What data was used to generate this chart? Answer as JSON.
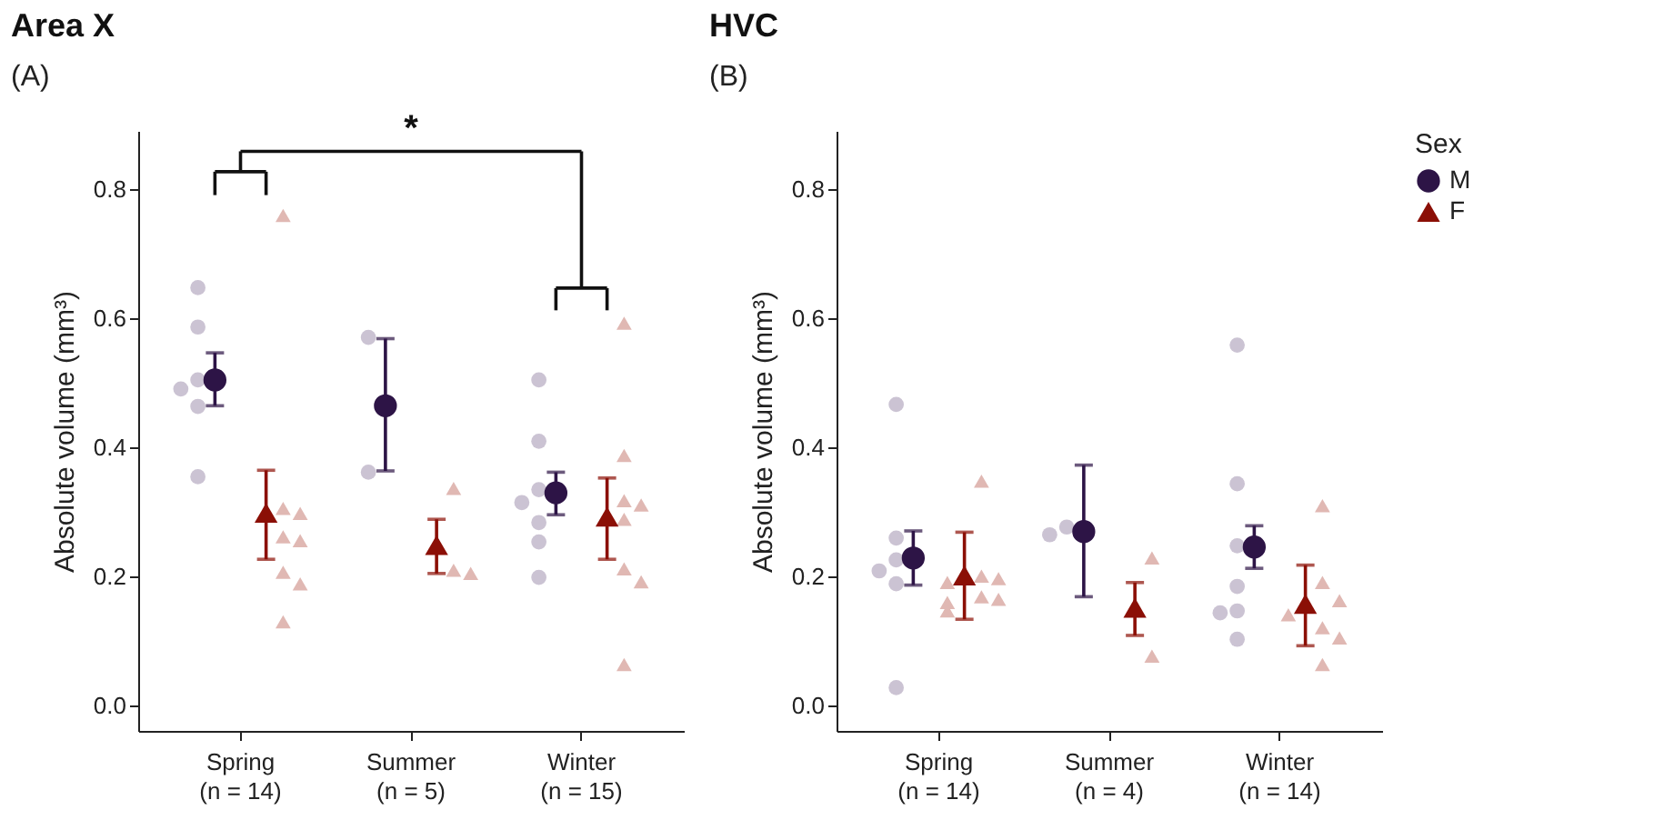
{
  "chart_data": [
    {
      "type": "scatter",
      "title": "Area X",
      "ylabel": "Absolute volume (mm³)",
      "categories": [
        "Spring (n = 14)",
        "Summer (n = 5)",
        "Winter (n = 15)"
      ],
      "ylim": [
        -0.04,
        0.89
      ],
      "yticks": [
        {
          "value": 0,
          "label": "0.0"
        },
        0.2,
        0.4,
        0.6,
        0.8
      ],
      "annotations": [
        "(A)",
        "*"
      ],
      "series": [
        {
          "color": "#cbc3d3",
          "marker": "circle",
          "x": [
            "Spring (n = 14)",
            "Spring (n = 14)",
            "Spring (n = 14)",
            "Spring (n = 14)",
            "Spring (n = 14)",
            "Spring (n = 14)",
            "Summer (n = 5)",
            "Summer (n = 5)",
            "Winter (n = 15)",
            "Winter (n = 15)",
            "Winter (n = 15)",
            "Winter (n = 15)",
            "Winter (n = 15)",
            "Winter (n = 15)",
            "Winter (n = 15)"
          ],
          "values": [
            0.647,
            0.586,
            0.504,
            0.49,
            0.463,
            0.354,
            0.57,
            0.361,
            0.504,
            0.409,
            0.334,
            0.314,
            0.283,
            0.253,
            0.198
          ]
        },
        {
          "color": "#e0b8b3",
          "marker": "triangle",
          "x": [
            "Spring (n = 14)",
            "Spring (n = 14)",
            "Spring (n = 14)",
            "Spring (n = 14)",
            "Spring (n = 14)",
            "Spring (n = 14)",
            "Spring (n = 14)",
            "Spring (n = 14)",
            "Summer (n = 5)",
            "Summer (n = 5)",
            "Summer (n = 5)",
            "Winter (n = 15)",
            "Winter (n = 15)",
            "Winter (n = 15)",
            "Winter (n = 15)",
            "Winter (n = 15)",
            "Winter (n = 15)",
            "Winter (n = 15)",
            "Winter (n = 15)"
          ],
          "values": [
            0.759,
            0.305,
            0.297,
            0.261,
            0.255,
            0.206,
            0.188,
            0.129,
            0.336,
            0.209,
            0.204,
            0.592,
            0.387,
            0.317,
            0.31,
            0.288,
            0.211,
            0.191,
            0.063
          ]
        },
        {
          "color": "#2d1446",
          "marker": "circle",
          "values": [
            0.504,
            0.464,
            0.329
          ],
          "errors": [
            [
              0.464,
              0.546
            ],
            [
              0.363,
              0.568
            ],
            [
              0.295,
              0.361
            ]
          ]
        },
        {
          "color": "#8b0f06",
          "marker": "triangle",
          "values": [
            0.298,
            0.248,
            0.292
          ],
          "errors": [
            [
              0.226,
              0.364
            ],
            [
              0.204,
              0.288
            ],
            [
              0.226,
              0.352
            ]
          ]
        }
      ]
    },
    {
      "type": "scatter",
      "title": "HVC",
      "ylabel": "Absolute volume (mm³)",
      "categories": [
        "Spring (n = 14)",
        "Summer (n = 4)",
        "Winter (n = 14)"
      ],
      "ylim": [
        -0.04,
        0.89
      ],
      "yticks": [
        {
          "value": 0,
          "label": "0.0"
        },
        0.2,
        0.4,
        0.6,
        0.8
      ],
      "legend": "right",
      "legend_title": "Sex",
      "annotations": [
        "(B)"
      ],
      "series": [
        {
          "color": "#cbc3d3",
          "marker": "circle",
          "x": [
            "Spring (n = 14)",
            "Spring (n = 14)",
            "Spring (n = 14)",
            "Spring (n = 14)",
            "Spring (n = 14)",
            "Spring (n = 14)",
            "Summer (n = 4)",
            "Summer (n = 4)",
            "Winter (n = 14)",
            "Winter (n = 14)",
            "Winter (n = 14)",
            "Winter (n = 14)",
            "Winter (n = 14)",
            "Winter (n = 14)",
            "Winter (n = 14)"
          ],
          "values": [
            0.466,
            0.259,
            0.225,
            0.208,
            0.188,
            0.027,
            0.276,
            0.264,
            0.558,
            0.343,
            0.247,
            0.184,
            0.146,
            0.143,
            0.102
          ]
        },
        {
          "color": "#e0b8b3",
          "marker": "triangle",
          "x": [
            "Spring (n = 14)",
            "Spring (n = 14)",
            "Spring (n = 14)",
            "Spring (n = 14)",
            "Spring (n = 14)",
            "Spring (n = 14)",
            "Spring (n = 14)",
            "Spring (n = 14)",
            "Summer (n = 4)",
            "Summer (n = 4)",
            "Winter (n = 14)",
            "Winter (n = 14)",
            "Winter (n = 14)",
            "Winter (n = 14)",
            "Winter (n = 14)",
            "Winter (n = 14)",
            "Winter (n = 14)"
          ],
          "values": [
            0.347,
            0.2,
            0.196,
            0.19,
            0.168,
            0.164,
            0.159,
            0.146,
            0.228,
            0.076,
            0.309,
            0.19,
            0.162,
            0.12,
            0.104,
            0.063,
            0.14
          ]
        },
        {
          "name": "M",
          "color": "#2d1446",
          "marker": "circle",
          "values": [
            0.228,
            0.269,
            0.245
          ],
          "errors": [
            [
              0.186,
              0.27
            ],
            [
              0.168,
              0.372
            ],
            [
              0.212,
              0.278
            ]
          ]
        },
        {
          "name": "F",
          "color": "#8b0f06",
          "marker": "triangle",
          "values": [
            0.201,
            0.151,
            0.157
          ],
          "errors": [
            [
              0.133,
              0.268
            ],
            [
              0.108,
              0.19
            ],
            [
              0.092,
              0.217
            ]
          ]
        }
      ]
    }
  ]
}
